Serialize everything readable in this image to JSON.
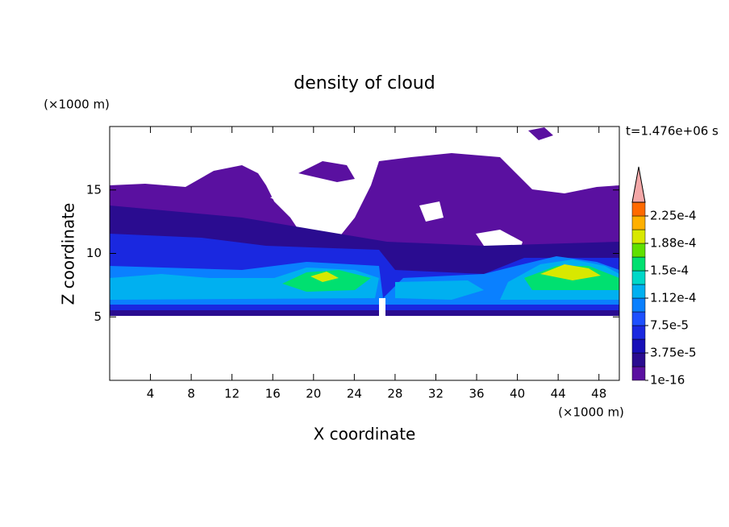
{
  "chart_data": {
    "type": "contour",
    "title": "density of cloud",
    "x_label": "X coordinate",
    "y_label": "Z coordinate",
    "x_unit": "(×1000 m)",
    "y_unit": "(×1000 m)",
    "annotation": "t=1.476e+06 s",
    "xlim": [
      0,
      50
    ],
    "ylim": [
      0,
      20
    ],
    "xticks": [
      4,
      8,
      12,
      16,
      20,
      24,
      28,
      32,
      36,
      40,
      44,
      48
    ],
    "yticks": [
      5,
      10,
      15
    ],
    "colorbar": {
      "clim": [
        1e-16,
        0.00024375
      ],
      "ticks": [
        {
          "value": 1e-16,
          "label": "1e-16"
        },
        {
          "value": 3.75e-05,
          "label": "3.75e-5"
        },
        {
          "value": 7.5e-05,
          "label": "7.5e-5"
        },
        {
          "value": 0.0001125,
          "label": "1.12e-4"
        },
        {
          "value": 0.00015,
          "label": "1.5e-4"
        },
        {
          "value": 0.0001875,
          "label": "1.88e-4"
        },
        {
          "value": 0.000225,
          "label": "2.25e-4"
        }
      ],
      "colors": [
        "#5a10a0",
        "#2a0c90",
        "#1810b8",
        "#1a28e0",
        "#1e50ff",
        "#0a80ff",
        "#00b0f0",
        "#00d8c8",
        "#00e070",
        "#60e000",
        "#d8e800",
        "#ffb000",
        "#ff6a00"
      ],
      "extend_color": "#f4a8a8"
    }
  }
}
